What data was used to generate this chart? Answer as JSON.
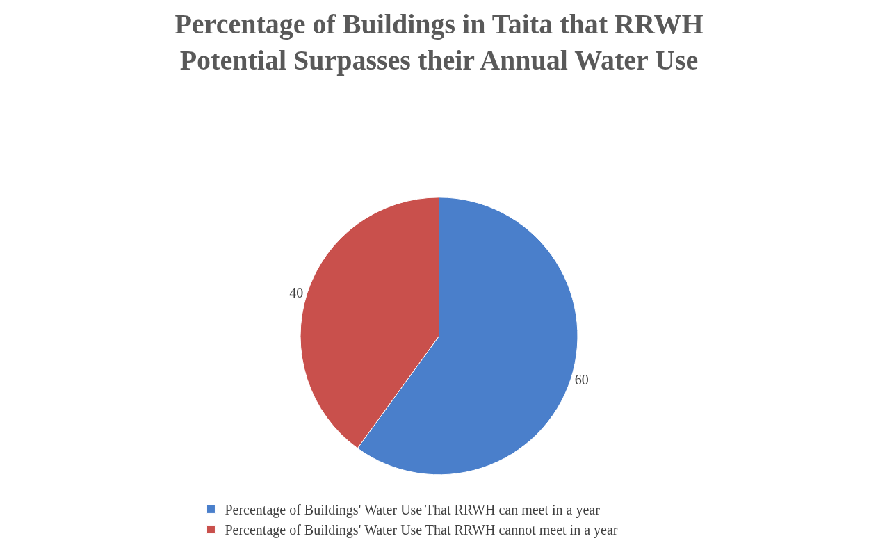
{
  "chart_data": {
    "type": "pie",
    "title": "Percentage of Buildings in Taita that RRWH\nPotential Surpasses their Annual Water Use",
    "categories": [
      "Percentage of Buildings' Water Use That RRWH can meet in a year",
      "Percentage of Buildings' Water Use That RRWH cannot meet in a year"
    ],
    "values": [
      60,
      40
    ],
    "colors": [
      "#4a7fcb",
      "#c9504c"
    ],
    "data_labels": true,
    "legend": "bottom"
  }
}
